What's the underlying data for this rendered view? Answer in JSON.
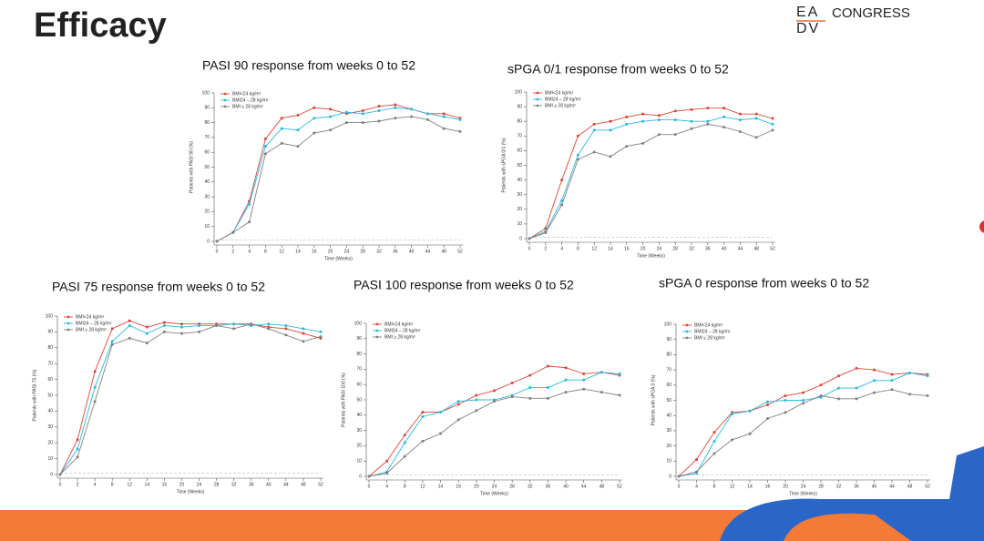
{
  "title": "Efficacy",
  "logo": {
    "mark_top": "EA",
    "mark_bottom": "DV",
    "text": "CONGRESS"
  },
  "chart_data": [
    {
      "type": "line",
      "title": "PASI 90 response from weeks 0 to 52",
      "x_label": "Time (Weeks)",
      "y_label": "Patients with PASI 90 (%)",
      "categories": [
        "0",
        "2",
        "4",
        "8",
        "12",
        "14",
        "16",
        "20",
        "24",
        "28",
        "32",
        "36",
        "40",
        "44",
        "48",
        "52"
      ],
      "series": [
        {
          "name": "BMI<24 kg/m²",
          "color": "#d9453a",
          "values": [
            0,
            6,
            27,
            69,
            83,
            85,
            90,
            89,
            86,
            88,
            91,
            92,
            89,
            86,
            86,
            83
          ]
        },
        {
          "name": "BMI24 – 28 kg/m²",
          "color": "#29b8e0",
          "values": [
            0,
            6,
            25,
            64,
            76,
            75,
            83,
            84,
            87,
            86,
            88,
            90,
            89,
            86,
            84,
            82
          ]
        },
        {
          "name": "BMI ≥ 28 kg/m²",
          "color": "#808080",
          "values": [
            0,
            6,
            13,
            59,
            66,
            64,
            73,
            75,
            80,
            80,
            81,
            83,
            84,
            82,
            76,
            74
          ]
        }
      ],
      "ylim": [
        0,
        100
      ],
      "yticks": [
        0,
        10,
        20,
        30,
        40,
        50,
        60,
        70,
        80,
        90,
        100
      ]
    },
    {
      "type": "line",
      "title": "sPGA 0/1 response from weeks 0 to 52",
      "x_label": "Time (Weeks)",
      "y_label": "Patients with sPGA 0/1 (%)",
      "categories": [
        "0",
        "2",
        "4",
        "8",
        "12",
        "14",
        "16",
        "20",
        "24",
        "28",
        "32",
        "36",
        "40",
        "44",
        "48",
        "52"
      ],
      "series": [
        {
          "name": "BMI<24 kg/m²",
          "color": "#d9453a",
          "values": [
            0,
            7,
            40,
            70,
            78,
            80,
            83,
            85,
            84,
            87,
            88,
            89,
            89,
            85,
            85,
            82
          ]
        },
        {
          "name": "BMI24 – 28 kg/m²",
          "color": "#29b8e0",
          "values": [
            0,
            5,
            26,
            57,
            74,
            74,
            78,
            80,
            81,
            81,
            80,
            80,
            83,
            81,
            82,
            78
          ]
        },
        {
          "name": "BMI ≥ 28 kg/m²",
          "color": "#808080",
          "values": [
            0,
            4,
            23,
            54,
            59,
            56,
            63,
            65,
            71,
            71,
            75,
            78,
            76,
            73,
            69,
            74
          ]
        }
      ],
      "ylim": [
        0,
        100
      ],
      "yticks": [
        0,
        10,
        20,
        30,
        40,
        50,
        60,
        70,
        80,
        90,
        100
      ]
    },
    {
      "type": "line",
      "title": "PASI 75 response from weeks 0 to 52",
      "x_label": "Time (Weeks)",
      "y_label": "Patients with PASI 75 (%)",
      "categories": [
        "0",
        "2",
        "4",
        "8",
        "12",
        "14",
        "16",
        "20",
        "24",
        "28",
        "32",
        "36",
        "40",
        "44",
        "48",
        "52"
      ],
      "series": [
        {
          "name": "BMI<24 kg/m²",
          "color": "#d9453a",
          "values": [
            0,
            22,
            65,
            92,
            97,
            93,
            96,
            95,
            95,
            95,
            95,
            95,
            93,
            92,
            89,
            86
          ]
        },
        {
          "name": "BMI24 – 28 kg/m²",
          "color": "#29b8e0",
          "values": [
            0,
            16,
            55,
            84,
            94,
            89,
            94,
            93,
            94,
            94,
            95,
            94,
            95,
            94,
            92,
            90
          ]
        },
        {
          "name": "BMI ≥ 28 kg/m²",
          "color": "#808080",
          "values": [
            0,
            11,
            46,
            82,
            86,
            83,
            90,
            89,
            90,
            94,
            92,
            95,
            92,
            88,
            84,
            87
          ]
        }
      ],
      "ylim": [
        0,
        100
      ],
      "yticks": [
        0,
        10,
        20,
        30,
        40,
        50,
        60,
        70,
        80,
        90,
        100
      ]
    },
    {
      "type": "line",
      "title": "PASI 100 response from weeks 0 to 52",
      "x_label": "Time (Weeks)",
      "y_label": "Patients with PASI 100 (%)",
      "categories": [
        "0",
        "4",
        "8",
        "12",
        "14",
        "16",
        "20",
        "24",
        "28",
        "32",
        "36",
        "40",
        "44",
        "48",
        "52"
      ],
      "series": [
        {
          "name": "BMI<24 kg/m²",
          "color": "#d9453a",
          "values": [
            0,
            10,
            27,
            42,
            42,
            47,
            53,
            56,
            61,
            66,
            72,
            71,
            67,
            68,
            66
          ]
        },
        {
          "name": "BMI24 – 28 kg/m²",
          "color": "#29b8e0",
          "values": [
            0,
            3,
            22,
            39,
            42,
            49,
            50,
            50,
            53,
            58,
            58,
            63,
            63,
            68,
            67
          ]
        },
        {
          "name": "BMI ≥ 28 kg/m²",
          "color": "#808080",
          "values": [
            0,
            2,
            13,
            23,
            28,
            37,
            43,
            49,
            52,
            51,
            51,
            55,
            57,
            55,
            53
          ]
        }
      ],
      "ylim": [
        0,
        100
      ],
      "yticks": [
        0,
        10,
        20,
        30,
        40,
        50,
        60,
        70,
        80,
        90,
        100
      ]
    },
    {
      "type": "line",
      "title": "sPGA 0 response from weeks 0 to 52",
      "x_label": "Time (Weeks)",
      "y_label": "Patients with sPGA 0 (%)",
      "categories": [
        "0",
        "4",
        "8",
        "12",
        "14",
        "16",
        "20",
        "24",
        "28",
        "32",
        "36",
        "40",
        "44",
        "48",
        "52"
      ],
      "series": [
        {
          "name": "BMI<24 kg/m²",
          "color": "#d9453a",
          "values": [
            0,
            11,
            29,
            42,
            43,
            47,
            53,
            55,
            60,
            66,
            71,
            70,
            67,
            68,
            67
          ]
        },
        {
          "name": "BMI24 – 28 kg/m²",
          "color": "#29b8e0",
          "values": [
            0,
            2,
            23,
            41,
            43,
            49,
            50,
            50,
            52,
            58,
            58,
            63,
            63,
            68,
            66
          ]
        },
        {
          "name": "BMI ≥ 28 kg/m²",
          "color": "#808080",
          "values": [
            0,
            3,
            15,
            24,
            28,
            38,
            42,
            48,
            53,
            51,
            51,
            55,
            57,
            54,
            53
          ]
        }
      ],
      "ylim": [
        0,
        100
      ],
      "yticks": [
        0,
        10,
        20,
        30,
        40,
        50,
        60,
        70,
        80,
        90,
        100
      ]
    }
  ]
}
